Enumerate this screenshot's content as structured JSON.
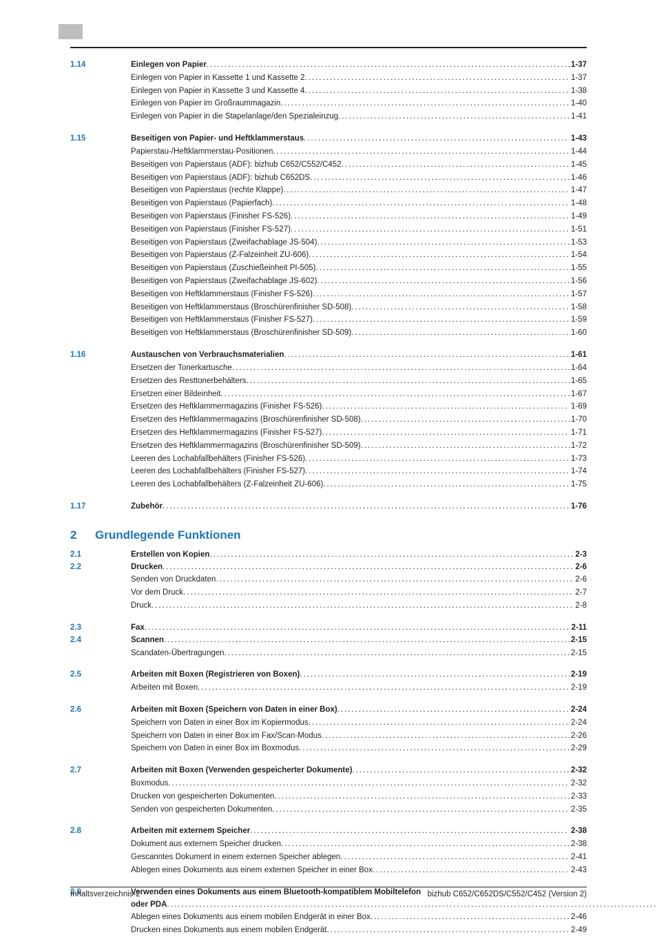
{
  "groups": [
    {
      "type": "section",
      "num": "1.14",
      "head": {
        "title": "Einlegen von Papier",
        "pg": "1-37"
      },
      "items": [
        {
          "title": "Einlegen von Papier in Kassette 1 und Kassette 2",
          "pg": "1-37"
        },
        {
          "title": "Einlegen von Papier in Kassette 3 und Kassette 4",
          "pg": "1-38"
        },
        {
          "title": "Einlegen von Papier im Großraummagazin",
          "pg": "1-40"
        },
        {
          "title": "Einlegen von Papier in die Stapelanlage/den Spezialeinzug",
          "pg": "1-41"
        }
      ]
    },
    {
      "type": "section",
      "num": "1.15",
      "head": {
        "title": "Beseitigen von Papier- und Heftklammerstaus",
        "pg": "1-43"
      },
      "items": [
        {
          "title": "Papierstau-/Heftklammerstau-Positionen",
          "pg": "1-44"
        },
        {
          "title": "Beseitigen von Papierstaus (ADF): bizhub C652/C552/C452",
          "pg": "1-45"
        },
        {
          "title": "Beseitigen von Papierstaus (ADF): bizhub C652DS",
          "pg": "1-46"
        },
        {
          "title": "Beseitigen von Papierstaus (rechte Klappe)",
          "pg": "1-47"
        },
        {
          "title": "Beseitigen von Papierstaus (Papierfach)",
          "pg": "1-48"
        },
        {
          "title": "Beseitigen von Papierstaus (Finisher FS-526)",
          "pg": "1-49"
        },
        {
          "title": "Beseitigen von Papierstaus (Finisher FS-527)",
          "pg": "1-51"
        },
        {
          "title": "Beseitigen von Papierstaus (Zweifachablage JS-504)",
          "pg": "1-53"
        },
        {
          "title": "Beseitigen von Papierstaus (Z-Falzeinheit ZU-606)",
          "pg": "1-54"
        },
        {
          "title": "Beseitigen von Papierstaus (Zuschießeinheit PI-505)",
          "pg": "1-55"
        },
        {
          "title": "Beseitigen von Papierstaus (Zweifachablage JS-602)",
          "pg": "1-56"
        },
        {
          "title": "Beseitigen von Heftklammerstaus (Finisher FS-526)",
          "pg": "1-57"
        },
        {
          "title": "Beseitigen von Heftklammerstaus (Broschürenfinisher SD-508)",
          "pg": "1-58"
        },
        {
          "title": "Beseitigen von Heftklammerstaus (Finisher FS-527)",
          "pg": "1-59"
        },
        {
          "title": "Beseitigen von Heftklammerstaus (Broschürenfinisher SD-509)",
          "pg": "1-60"
        }
      ]
    },
    {
      "type": "section",
      "num": "1.16",
      "head": {
        "title": "Austauschen von Verbrauchsmaterialien",
        "pg": "1-61"
      },
      "items": [
        {
          "title": "Ersetzen der Tonerkartusche",
          "pg": "1-64"
        },
        {
          "title": "Ersetzen des Resttonerbehälters",
          "pg": "1-65"
        },
        {
          "title": "Ersetzen einer Bildeinheit",
          "pg": "1-67"
        },
        {
          "title": "Ersetzen des Heftklammermagazins (Finisher FS-526)",
          "pg": "1-69"
        },
        {
          "title": "Ersetzen des Heftklammermagazins (Broschürenfinisher SD-508)",
          "pg": "1-70"
        },
        {
          "title": "Ersetzen des Heftklammermagazins (Finisher FS-527)",
          "pg": "1-71"
        },
        {
          "title": "Ersetzen des Heftklammermagazins (Broschürenfinisher SD-509)",
          "pg": "1-72"
        },
        {
          "title": "Leeren des Lochabfallbehälters (Finisher FS-526)",
          "pg": "1-73"
        },
        {
          "title": "Leeren des Lochabfallbehälters (Finisher FS-527)",
          "pg": "1-74"
        },
        {
          "title": "Leeren des Lochabfallbehälters (Z-Falzeinheit ZU-606)",
          "pg": "1-75"
        }
      ]
    },
    {
      "type": "section",
      "num": "1.17",
      "head": {
        "title": "Zubehör",
        "pg": "1-76"
      },
      "items": []
    },
    {
      "type": "chapter",
      "num": "2",
      "title": "Grundlegende Funktionen"
    },
    {
      "type": "section",
      "num": "2.1",
      "head": {
        "title": "Erstellen von Kopien",
        "pg": "2-3"
      },
      "items": []
    },
    {
      "type": "section",
      "tight": true,
      "num": "2.2",
      "head": {
        "title": "Drucken",
        "pg": "2-6"
      },
      "items": [
        {
          "title": "Senden von Druckdaten",
          "pg": "2-6"
        },
        {
          "title": "Vor dem Druck",
          "pg": "2-7"
        },
        {
          "title": "Druck",
          "pg": "2-8"
        }
      ]
    },
    {
      "type": "section",
      "num": "2.3",
      "head": {
        "title": "Fax",
        "pg": "2-11"
      },
      "items": []
    },
    {
      "type": "section",
      "tight": true,
      "num": "2.4",
      "head": {
        "title": "Scannen",
        "pg": "2-15"
      },
      "items": [
        {
          "title": "Scandaten-Übertragungen",
          "pg": "2-15"
        }
      ]
    },
    {
      "type": "section",
      "num": "2.5",
      "head": {
        "title": "Arbeiten mit Boxen (Registrieren von Boxen)",
        "pg": "2-19"
      },
      "items": [
        {
          "title": "Arbeiten mit Boxen",
          "pg": "2-19"
        }
      ]
    },
    {
      "type": "section",
      "num": "2.6",
      "head": {
        "title": "Arbeiten mit Boxen (Speichern von Daten in einer Box)",
        "pg": "2-24"
      },
      "items": [
        {
          "title": "Speichern von Daten in einer Box im Kopiermodus",
          "pg": "2-24"
        },
        {
          "title": "Speichern von Daten in einer Box im Fax/Scan-Modus",
          "pg": "2-26"
        },
        {
          "title": "Speichern von Daten in einer Box im Boxmodus",
          "pg": "2-29"
        }
      ]
    },
    {
      "type": "section",
      "num": "2.7",
      "head": {
        "title": "Arbeiten mit Boxen (Verwenden gespeicherter Dokumente)",
        "pg": "2-32"
      },
      "items": [
        {
          "title": "Boxmodus",
          "pg": "2-32"
        },
        {
          "title": "Drucken von gespeicherten Dokumenten",
          "pg": "2-33"
        },
        {
          "title": "Senden von gespeicherten Dokumenten",
          "pg": "2-35"
        }
      ]
    },
    {
      "type": "section",
      "num": "2.8",
      "head": {
        "title": "Arbeiten mit externem Speicher",
        "pg": "2-38"
      },
      "items": [
        {
          "title": "Dokument aus externem Speicher drucken",
          "pg": "2-38"
        },
        {
          "title": "Gescanntes Dokument in einem externen Speicher ablegen",
          "pg": "2-41"
        },
        {
          "title": "Ablegen eines Dokuments aus einem externen Speicher in einer Box",
          "pg": "2-43"
        }
      ]
    },
    {
      "type": "section",
      "num": "2.9",
      "head": {
        "title": "Verwenden eines Dokuments aus einem Bluetooth-kompatiblem Mobiltelefon oder PDA",
        "pg": "2-46",
        "wrap": true
      },
      "items": [
        {
          "title": "Ablegen eines Dokuments aus einem mobilen Endgerät in einer Box",
          "pg": "2-46"
        },
        {
          "title": "Drucken eines Dokuments aus einem mobilen Endgerät",
          "pg": "2-49"
        }
      ]
    }
  ],
  "footer": {
    "left": "Inhaltsverzeichnis-2",
    "right": "bizhub C652/C652DS/C552/C452 (Version 2)"
  },
  "leader_dots": "........................................................................................................................................................................................................................................................................"
}
